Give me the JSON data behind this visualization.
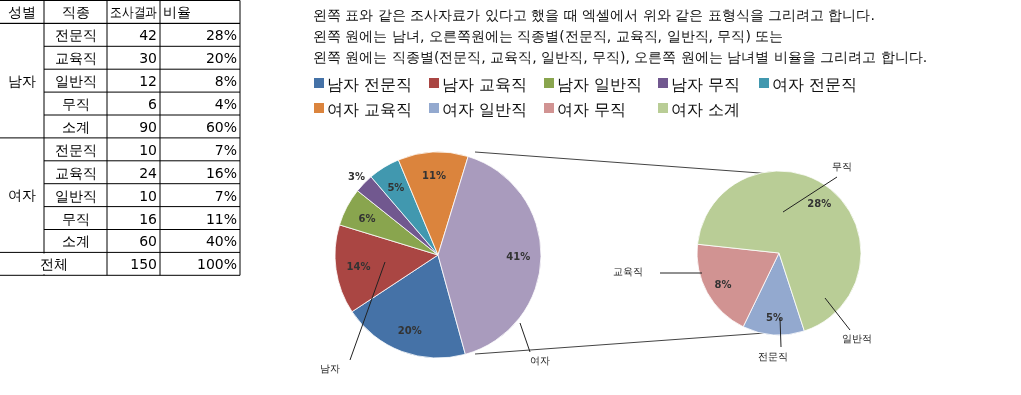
{
  "chart_data": [
    {
      "type": "other",
      "categories": [
        "성별",
        "직종",
        "조사결과",
        "비율"
      ],
      "cell_labels": [
        [
          "남자",
          "전문직",
          "42",
          "28%"
        ],
        [
          null,
          "교육직",
          "30",
          "20%"
        ],
        [
          null,
          "일반직",
          "12",
          "8%"
        ],
        [
          null,
          "무직",
          "6",
          "4%"
        ],
        [
          null,
          "소계",
          "90",
          "60%"
        ],
        [
          "여자",
          "전문직",
          "10",
          "7%"
        ],
        [
          null,
          "교육직",
          "24",
          "16%"
        ],
        [
          null,
          "일반직",
          "10",
          "7%"
        ],
        [
          null,
          "무직",
          "16",
          "11%"
        ],
        [
          null,
          "소계",
          "60",
          "40%"
        ],
        [
          "전체",
          null,
          "150",
          "100%"
        ]
      ]
    },
    {
      "type": "pie",
      "title": "왼쪽 표와 같은 조사자료가 있다고 했을 때 엑셀에서 위와 같은 표형식을 그리려고 합니다.",
      "subtitle": "왼쪽 원에는 남녀, 오른쪽원에는 직종별(전문직, 교육직, 일반직, 무직) 또는\n왼쪽 원에는 직종별(전문직, 교육직, 일반직, 무직), 오른쪽 원에는 남녀별 비율을 그리려고 합니다.",
      "categories": [
        "남자 전문직",
        "남자 교육직",
        "남자 일반직",
        "남자 무직",
        "여자 전문직",
        "여자 교육직",
        null
      ],
      "values": [
        20,
        14,
        6,
        3,
        5,
        11,
        41
      ],
      "colors": [
        "#4572a7",
        "#aa4643",
        "#89a54e",
        "#71588f",
        "#4198af",
        "#db843d",
        "#a99bbd"
      ],
      "value_labels": [
        "20%",
        "14%",
        "6%",
        "3%",
        "5%",
        "11%",
        "41%"
      ],
      "legend": "top",
      "annotations": [
        "남자",
        "여자"
      ]
    },
    {
      "type": "pie",
      "categories": [
        "여자 일반직",
        "여자 무직",
        "여자 소계"
      ],
      "values": [
        5,
        8,
        28
      ],
      "colors": [
        "#93a9cf",
        "#d19392",
        "#b9cd96"
      ],
      "value_labels": [
        "5%",
        "8%",
        "28%"
      ],
      "legend": "top",
      "annotations": [
        "전문직",
        "교육직",
        "무직",
        "일반적"
      ]
    }
  ]
}
